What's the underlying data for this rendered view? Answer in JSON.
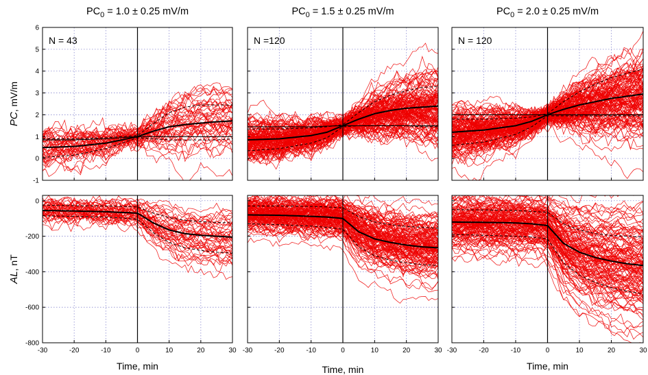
{
  "figure": {
    "x_axis_label_main": "Time,",
    "x_axis_unit": "min",
    "pc_label_italic": "PC",
    "pc_unit": ",  mV/m",
    "al_label_italic": "AL",
    "al_unit": ",  nT"
  },
  "colors": {
    "traces": "#ee0000",
    "statistics": "#000000",
    "grid": "#8a8ad0"
  },
  "chart_data": [
    {
      "type": "line",
      "panel": "PC, PC0 = 1.0 ± 0.25 mV/m",
      "title_base": "PC",
      "title_sub": "0",
      "title_rest": " = 1.0 ± 0.25 mV/m",
      "annotation": "N = 43",
      "n_traces": 43,
      "xlim": [
        -30,
        30
      ],
      "ylim": [
        -1,
        6
      ],
      "xticks": [
        -30,
        -20,
        -10,
        0,
        10,
        20,
        30
      ],
      "yticks": [
        -1,
        0,
        1,
        2,
        3,
        4,
        5,
        6
      ],
      "grid": true,
      "x": [
        -30,
        -20,
        -10,
        -5,
        0,
        5,
        10,
        15,
        20,
        25,
        30
      ],
      "series": [
        {
          "style": "mean",
          "values": [
            0.5,
            0.55,
            0.7,
            0.85,
            1.0,
            1.25,
            1.45,
            1.55,
            1.62,
            1.68,
            1.72
          ]
        },
        {
          "style": "sd",
          "values": [
            0.9,
            0.9,
            0.95,
            1.0,
            1.05,
            1.6,
            2.1,
            2.35,
            2.45,
            2.45,
            2.45
          ]
        },
        {
          "style": "sd",
          "values": [
            0.05,
            0.15,
            0.45,
            0.7,
            0.95,
            0.9,
            0.85,
            0.85,
            0.85,
            0.85,
            0.9
          ]
        },
        {
          "style": "median",
          "values": [
            0.85,
            0.85,
            0.9,
            0.95,
            1.0,
            1.0,
            1.0,
            1.0,
            1.0,
            1.0,
            1.0
          ]
        }
      ]
    },
    {
      "type": "line",
      "panel": "PC, PC0 = 1.5 ± 0.25 mV/m",
      "title_base": "PC",
      "title_sub": "0",
      "title_rest": " = 1.5 ± 0.25 mV/m",
      "annotation": "N =120",
      "n_traces": 120,
      "xlim": [
        -30,
        30
      ],
      "ylim": [
        -1,
        6
      ],
      "xticks": [
        -30,
        -20,
        -10,
        0,
        10,
        20,
        30
      ],
      "yticks": [
        -1,
        0,
        1,
        2,
        3,
        4,
        5,
        6
      ],
      "grid": true,
      "x": [
        -30,
        -20,
        -10,
        -5,
        0,
        5,
        10,
        15,
        20,
        25,
        30
      ],
      "series": [
        {
          "style": "mean",
          "values": [
            0.85,
            0.9,
            1.05,
            1.2,
            1.5,
            1.8,
            2.05,
            2.2,
            2.3,
            2.35,
            2.4
          ]
        },
        {
          "style": "sd",
          "values": [
            1.35,
            1.35,
            1.4,
            1.45,
            1.55,
            2.1,
            2.6,
            2.9,
            3.1,
            3.25,
            3.3
          ]
        },
        {
          "style": "sd",
          "values": [
            0.35,
            0.45,
            0.7,
            0.95,
            1.45,
            1.5,
            1.5,
            1.5,
            1.5,
            1.45,
            1.45
          ]
        },
        {
          "style": "median",
          "values": [
            1.45,
            1.45,
            1.45,
            1.48,
            1.5,
            1.5,
            1.5,
            1.5,
            1.5,
            1.5,
            1.5
          ]
        }
      ]
    },
    {
      "type": "line",
      "panel": "PC, PC0 = 2.0 ± 0.25 mV/m",
      "title_base": "PC",
      "title_sub": "0",
      "title_rest": " = 2.0 ± 0.25 mV/m",
      "annotation": "N = 120",
      "n_traces": 120,
      "xlim": [
        -30,
        30
      ],
      "ylim": [
        -1,
        6
      ],
      "xticks": [
        -30,
        -20,
        -10,
        0,
        10,
        20,
        30
      ],
      "yticks": [
        -1,
        0,
        1,
        2,
        3,
        4,
        5,
        6
      ],
      "grid": true,
      "x": [
        -30,
        -20,
        -10,
        -5,
        0,
        5,
        10,
        15,
        20,
        25,
        30
      ],
      "series": [
        {
          "style": "mean",
          "values": [
            1.2,
            1.3,
            1.5,
            1.7,
            2.0,
            2.25,
            2.45,
            2.6,
            2.75,
            2.85,
            2.95
          ]
        },
        {
          "style": "sd",
          "values": [
            1.8,
            1.8,
            1.85,
            1.9,
            2.05,
            2.6,
            3.05,
            3.4,
            3.7,
            3.9,
            4.1
          ]
        },
        {
          "style": "sd",
          "values": [
            0.6,
            0.75,
            1.1,
            1.45,
            1.95,
            1.95,
            1.95,
            1.95,
            1.95,
            1.95,
            1.95
          ]
        },
        {
          "style": "median",
          "values": [
            2.0,
            2.0,
            2.0,
            2.0,
            2.0,
            2.0,
            2.0,
            2.0,
            2.0,
            2.0,
            2.0
          ]
        }
      ]
    },
    {
      "type": "line",
      "panel": "AL, PC0 = 1.0 ± 0.25 mV/m",
      "n_traces": 43,
      "xlim": [
        -30,
        30
      ],
      "ylim": [
        -800,
        30
      ],
      "xticks": [
        -30,
        -20,
        -10,
        0,
        10,
        20,
        30
      ],
      "yticks": [
        -800,
        -600,
        -400,
        -200,
        0
      ],
      "grid": true,
      "x": [
        -30,
        -20,
        -10,
        -5,
        0,
        5,
        10,
        15,
        20,
        25,
        30
      ],
      "series": [
        {
          "style": "mean",
          "values": [
            -55,
            -58,
            -62,
            -66,
            -70,
            -125,
            -165,
            -185,
            -195,
            -200,
            -205
          ]
        },
        {
          "style": "sd",
          "values": [
            -25,
            -28,
            -30,
            -32,
            -35,
            -70,
            -95,
            -110,
            -118,
            -122,
            -125
          ]
        },
        {
          "style": "sd",
          "values": [
            -85,
            -88,
            -92,
            -97,
            -105,
            -180,
            -235,
            -265,
            -280,
            -290,
            -295
          ]
        }
      ]
    },
    {
      "type": "line",
      "panel": "AL, PC0 = 1.5 ± 0.25 mV/m",
      "n_traces": 120,
      "xlim": [
        -30,
        30
      ],
      "ylim": [
        -800,
        30
      ],
      "xticks": [
        -30,
        -20,
        -10,
        0,
        10,
        20,
        30
      ],
      "yticks": [
        -800,
        -600,
        -400,
        -200,
        0
      ],
      "grid": true,
      "x": [
        -30,
        -20,
        -10,
        -5,
        0,
        5,
        10,
        15,
        20,
        25,
        30
      ],
      "series": [
        {
          "style": "mean",
          "values": [
            -80,
            -82,
            -88,
            -92,
            -100,
            -175,
            -215,
            -235,
            -250,
            -260,
            -265
          ]
        },
        {
          "style": "sd",
          "values": [
            -30,
            -30,
            -32,
            -35,
            -40,
            -90,
            -120,
            -135,
            -145,
            -150,
            -155
          ]
        },
        {
          "style": "sd",
          "values": [
            -130,
            -135,
            -143,
            -150,
            -160,
            -260,
            -310,
            -335,
            -350,
            -360,
            -365
          ]
        }
      ]
    },
    {
      "type": "line",
      "panel": "AL, PC0 = 2.0 ± 0.25 mV/m",
      "n_traces": 120,
      "xlim": [
        -30,
        30
      ],
      "ylim": [
        -800,
        30
      ],
      "xticks": [
        -30,
        -20,
        -10,
        0,
        10,
        20,
        30
      ],
      "yticks": [
        -800,
        -600,
        -400,
        -200,
        0
      ],
      "grid": true,
      "x": [
        -30,
        -20,
        -10,
        -5,
        0,
        5,
        10,
        15,
        20,
        25,
        30
      ],
      "series": [
        {
          "style": "mean",
          "values": [
            -120,
            -122,
            -125,
            -130,
            -140,
            -240,
            -290,
            -320,
            -340,
            -355,
            -365
          ]
        },
        {
          "style": "sd",
          "values": [
            -50,
            -52,
            -55,
            -60,
            -65,
            -130,
            -165,
            -185,
            -195,
            -200,
            -205
          ]
        },
        {
          "style": "sd",
          "values": [
            -190,
            -195,
            -200,
            -205,
            -215,
            -350,
            -420,
            -460,
            -490,
            -510,
            -525
          ]
        }
      ]
    }
  ]
}
